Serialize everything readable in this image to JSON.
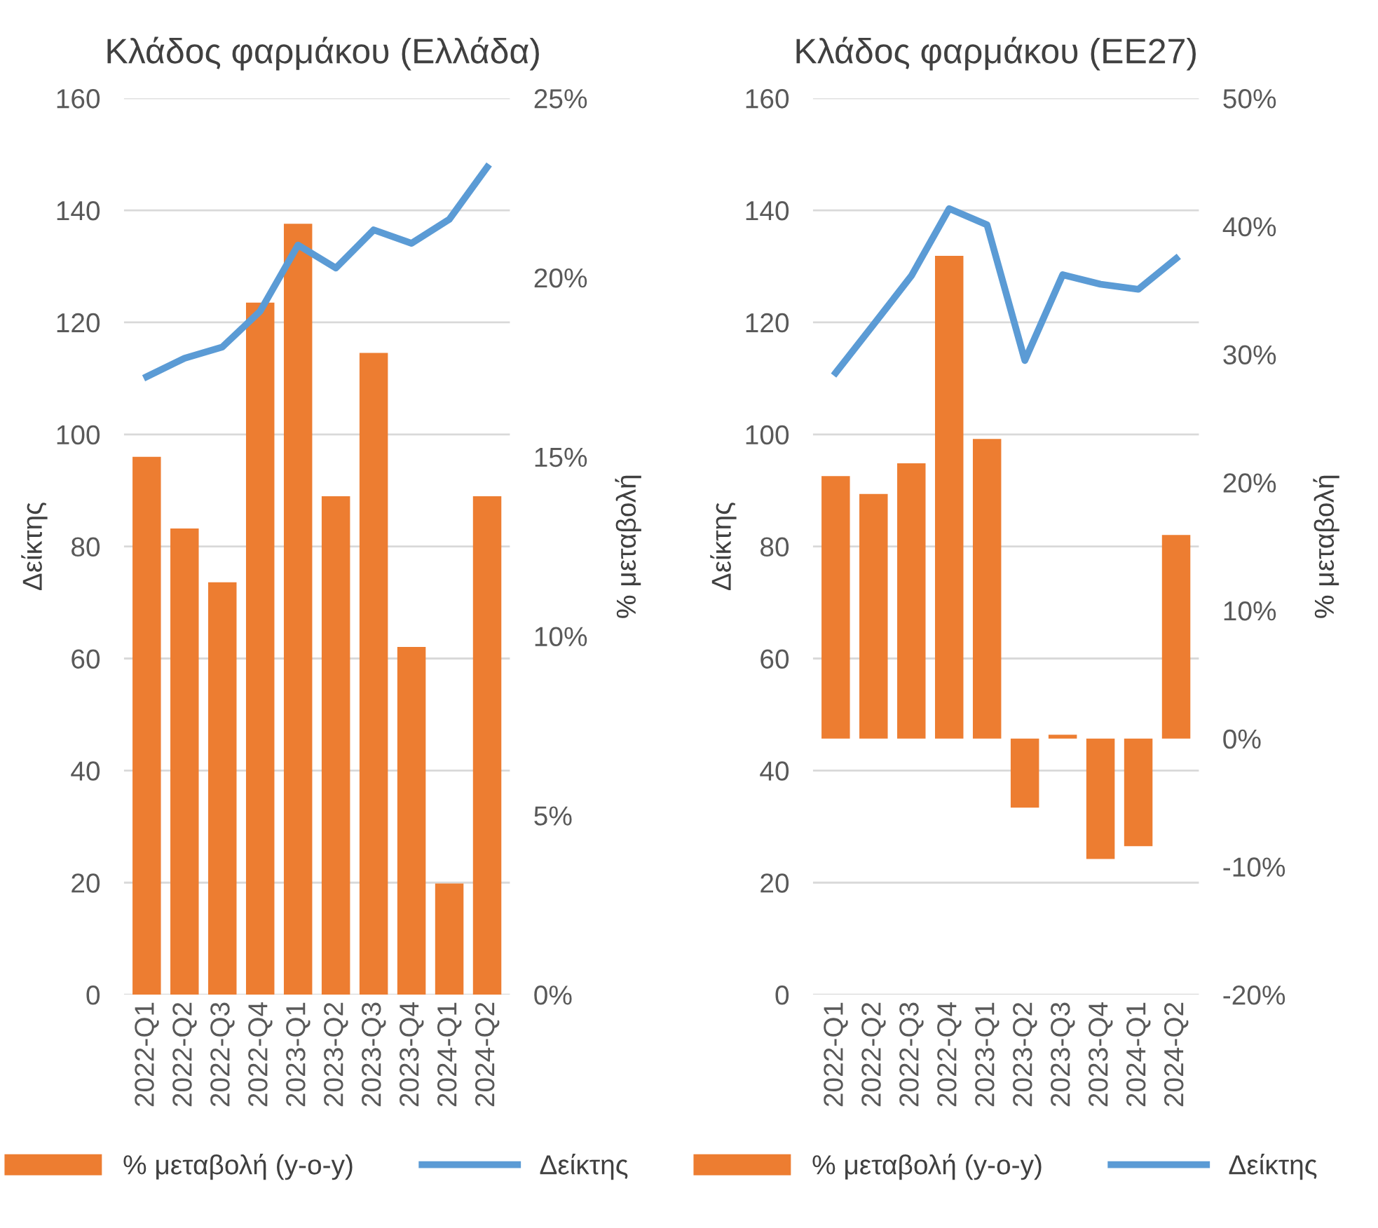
{
  "chart_data": [
    {
      "type": "bar",
      "title": "Κλάδος φαρμάκου (Ελλάδα)",
      "ylabel": "Δείκτης",
      "y2label": "% μεταβολή",
      "categories": [
        "2022-Q1",
        "2022-Q2",
        "2022-Q3",
        "2022-Q4",
        "2023-Q1",
        "2023-Q2",
        "2023-Q3",
        "2023-Q4",
        "2024-Q1",
        "2024-Q2"
      ],
      "series": [
        {
          "name": "% μεταβολή (y-o-y)",
          "axis": "y2",
          "color": "#ed7d31",
          "values": [
            15.0,
            13.0,
            11.5,
            19.3,
            21.5,
            13.9,
            17.9,
            9.7,
            3.1,
            13.9
          ]
        },
        {
          "name": "Δείκτης",
          "type": "line",
          "color": "#5b9bd5",
          "values": [
            110.3,
            113.6,
            115.6,
            122.0,
            133.8,
            129.7,
            136.5,
            134.1,
            138.4,
            147.7
          ]
        }
      ],
      "ylim": [
        0,
        160
      ],
      "yticks": [
        0,
        20,
        40,
        60,
        80,
        100,
        120,
        140,
        160
      ],
      "y2lim": [
        0,
        25
      ],
      "y2ticks": [
        {
          "value": 0,
          "label": "0%"
        },
        {
          "value": 5,
          "label": "5%"
        },
        {
          "value": 10,
          "label": "10%"
        },
        {
          "value": 15,
          "label": "15%"
        },
        {
          "value": 20,
          "label": "20%"
        },
        {
          "value": 25,
          "label": "25%"
        }
      ],
      "grid": "y",
      "legend": "bottom",
      "marker": "none",
      "line_style": "solid"
    },
    {
      "type": "bar",
      "title": "Κλάδος φαρμάκου (ΕΕ27)",
      "ylabel": "Δείκτης",
      "y2label": "% μεταβολή",
      "categories": [
        "2022-Q1",
        "2022-Q2",
        "2022-Q3",
        "2022-Q4",
        "2023-Q1",
        "2023-Q2",
        "2023-Q3",
        "2023-Q4",
        "2024-Q1",
        "2024-Q2"
      ],
      "series": [
        {
          "name": "% μεταβολή (y-o-y)",
          "axis": "y2",
          "color": "#ed7d31",
          "values": [
            20.5,
            19.1,
            21.5,
            37.7,
            23.4,
            -5.4,
            0.3,
            -9.4,
            -8.4,
            15.9
          ]
        },
        {
          "name": "Δείκτης",
          "type": "line",
          "color": "#5b9bd5",
          "values": [
            111.0,
            119.6,
            128.3,
            140.3,
            137.4,
            113.2,
            128.5,
            126.8,
            125.9,
            131.4
          ]
        }
      ],
      "ylim": [
        0,
        160
      ],
      "yticks": [
        0,
        20,
        40,
        60,
        80,
        100,
        120,
        140,
        160
      ],
      "y2lim": [
        -20,
        50
      ],
      "y2ticks": [
        {
          "value": -20,
          "label": "-20%"
        },
        {
          "value": -10,
          "label": "-10%"
        },
        {
          "value": 0,
          "label": "0%"
        },
        {
          "value": 10,
          "label": "10%"
        },
        {
          "value": 20,
          "label": "20%"
        },
        {
          "value": 30,
          "label": "30%"
        },
        {
          "value": 40,
          "label": "40%"
        },
        {
          "value": 50,
          "label": "50%"
        }
      ],
      "grid": "y",
      "legend": "bottom",
      "marker": "none",
      "line_style": "solid"
    }
  ]
}
